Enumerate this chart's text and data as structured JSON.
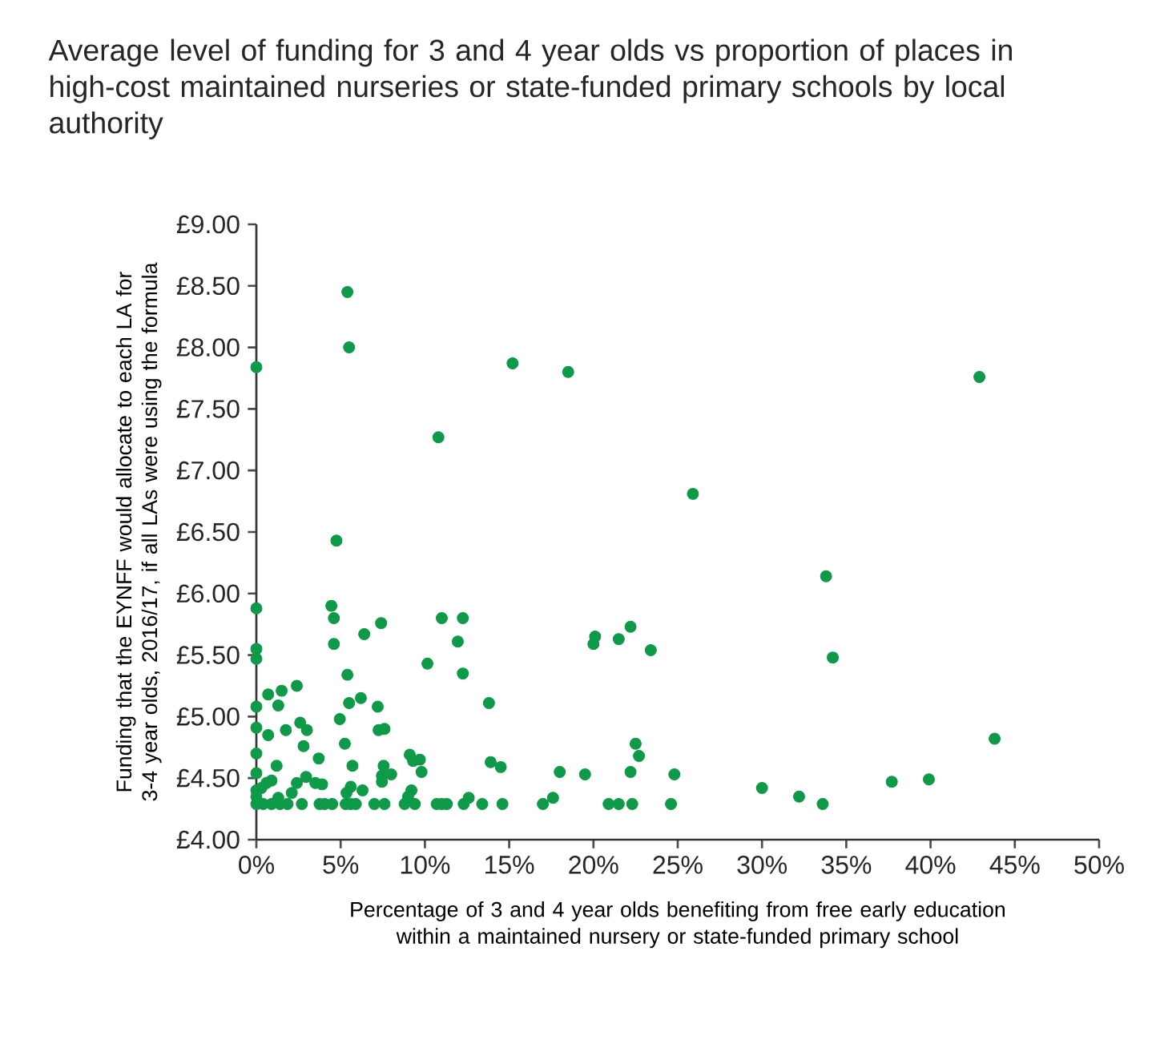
{
  "chart_data": {
    "type": "scatter",
    "title": "Average level of funding for 3 and 4 year olds vs proportion of places in high-cost maintained nurseries or state-funded primary schools by local authority",
    "xlabel": "Percentage of 3 and 4 year olds benefiting from free early education within a maintained nursery or state-funded primary school",
    "ylabel": "Funding that the EYNFF would allocate to each LA for 3-4 year olds, 2016/17, if all LAs were using the formula",
    "color": "#0e9a48",
    "marker": "circle",
    "x": [
      0,
      0,
      0,
      0,
      0,
      0,
      0,
      0,
      0,
      0,
      0,
      0.4,
      0.9,
      1.4,
      1.85,
      2.7,
      3.75,
      4.05,
      4.5,
      5.3,
      5.6,
      5.9,
      7.0,
      7.6,
      8.8,
      9.4,
      10.7,
      11.0,
      11.3,
      12.3,
      13.4,
      14.6,
      0.7,
      0.7,
      1.2,
      1.5,
      1.3,
      1.75,
      2.4,
      2.6,
      3.0,
      2.8,
      3.7,
      2.95,
      2.4,
      2.1,
      3.5,
      3.9,
      0.9,
      0.6,
      0.3,
      1.3,
      4.45,
      4.6,
      4.6,
      6.4,
      7.4,
      5.4,
      5.5,
      6.2,
      7.2,
      4.95,
      5.25,
      7.25,
      7.6,
      5.7,
      7.55,
      7.45,
      8.0,
      7.45,
      5.6,
      5.35,
      6.3,
      9.1,
      9.3,
      9.7,
      9.8,
      9.2,
      9.0,
      10.15,
      11.0,
      12.25,
      11.95,
      12.25,
      12.6,
      13.8,
      13.9,
      14.5,
      18.0,
      19.5,
      20.0,
      20.1,
      21.5,
      22.2,
      23.4,
      22.5,
      22.7,
      22.2,
      24.8,
      30.0,
      17.0,
      17.6,
      20.9,
      21.5,
      22.3,
      24.6,
      5.4,
      5.5,
      15.2,
      10.8,
      4.75,
      18.5,
      42.9,
      25.9,
      33.8,
      34.2,
      43.8,
      37.7,
      39.9,
      32.2,
      33.6
    ],
    "values": [
      7.84,
      5.88,
      5.55,
      5.47,
      5.08,
      4.91,
      4.7,
      4.54,
      4.4,
      4.35,
      4.29,
      4.29,
      4.29,
      4.29,
      4.29,
      4.29,
      4.29,
      4.29,
      4.29,
      4.29,
      4.29,
      4.29,
      4.29,
      4.29,
      4.29,
      4.29,
      4.29,
      4.29,
      4.29,
      4.29,
      4.29,
      4.29,
      5.18,
      4.85,
      4.6,
      5.21,
      5.09,
      4.89,
      5.25,
      4.95,
      4.89,
      4.76,
      4.66,
      4.51,
      4.46,
      4.38,
      4.46,
      4.45,
      4.48,
      4.46,
      4.42,
      4.34,
      5.9,
      5.8,
      5.59,
      5.67,
      5.76,
      5.34,
      5.11,
      5.15,
      5.08,
      4.98,
      4.78,
      4.89,
      4.9,
      4.6,
      4.6,
      4.52,
      4.53,
      4.47,
      4.43,
      4.38,
      4.4,
      4.69,
      4.64,
      4.65,
      4.55,
      4.4,
      4.35,
      5.43,
      5.8,
      5.8,
      5.61,
      5.35,
      4.34,
      5.11,
      4.63,
      4.59,
      4.55,
      4.53,
      5.59,
      5.65,
      5.63,
      5.73,
      5.54,
      4.78,
      4.68,
      4.55,
      4.53,
      4.42,
      4.29,
      4.34,
      4.29,
      4.29,
      4.29,
      4.29,
      8.45,
      8.0,
      7.87,
      7.27,
      6.43,
      7.8,
      7.76,
      6.81,
      6.14,
      5.48,
      4.82,
      4.47,
      4.49,
      4.35,
      4.29
    ],
    "xlim": [
      0,
      50
    ],
    "xticks": [
      {
        "value": 0,
        "label": "0%"
      },
      {
        "value": 5,
        "label": "5%"
      },
      {
        "value": 10,
        "label": "10%"
      },
      {
        "value": 15,
        "label": "15%"
      },
      {
        "value": 20,
        "label": "20%"
      },
      {
        "value": 25,
        "label": "25%"
      },
      {
        "value": 30,
        "label": "30%"
      },
      {
        "value": 35,
        "label": "35%"
      },
      {
        "value": 40,
        "label": "40%"
      },
      {
        "value": 45,
        "label": "45%"
      },
      {
        "value": 50,
        "label": "50%"
      }
    ],
    "ylim": [
      4,
      9
    ],
    "yticks": [
      {
        "value": 4,
        "label": "£4.00"
      },
      {
        "value": 4.5,
        "label": "£4.50"
      },
      {
        "value": 5,
        "label": "£5.00"
      },
      {
        "value": 5.5,
        "label": "£5.50"
      },
      {
        "value": 6,
        "label": "£6.00"
      },
      {
        "value": 6.5,
        "label": "£6.50"
      },
      {
        "value": 7,
        "label": "£7.00"
      },
      {
        "value": 7.5,
        "label": "£7.50"
      },
      {
        "value": 8,
        "label": "£8.00"
      },
      {
        "value": 8.5,
        "label": "£8.50"
      },
      {
        "value": 9,
        "label": "£9.00"
      }
    ]
  }
}
